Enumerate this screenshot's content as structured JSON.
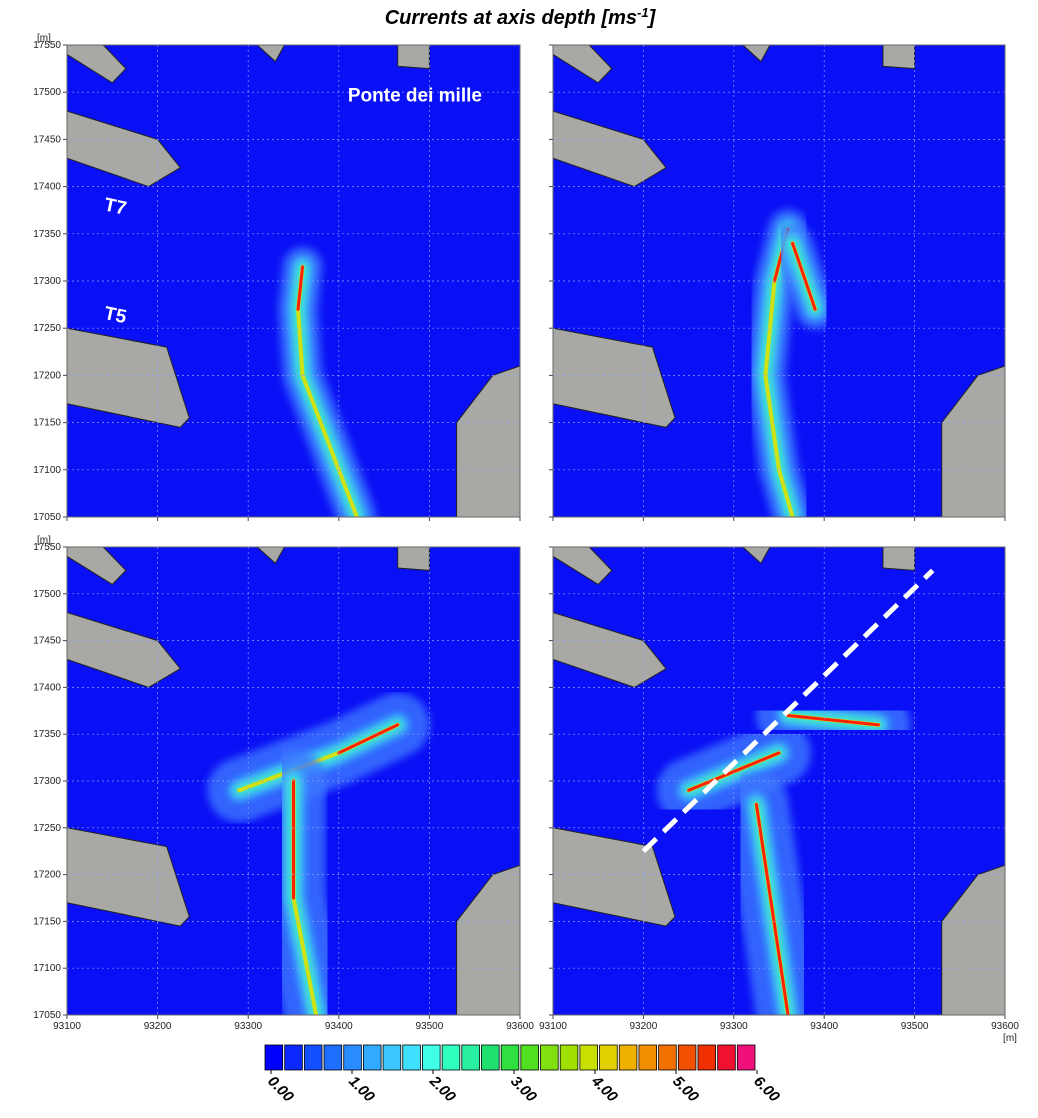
{
  "title_parts": [
    "Currents at axis depth [ms",
    "-1",
    "]"
  ],
  "chart_data": [
    {
      "type": "map",
      "xlim": [
        93100,
        93600
      ],
      "ylim": [
        17050,
        17550
      ],
      "xticks": [
        93100,
        93200,
        93300,
        93400,
        93500,
        93600
      ],
      "yticks": [
        17050,
        17100,
        17150,
        17200,
        17250,
        17300,
        17350,
        17400,
        17450,
        17500,
        17550
      ],
      "y_unit": "[m]",
      "show_xtick_labels": false,
      "show_ytick_labels": true,
      "grid": true,
      "annotations": [
        "Ponte dei mille",
        "T7",
        "T5"
      ]
    },
    {
      "type": "map",
      "xlim": [
        93100,
        93600
      ],
      "ylim": [
        17050,
        17550
      ],
      "xticks": [
        93100,
        93200,
        93300,
        93400,
        93500,
        93600
      ],
      "yticks": [
        17050,
        17100,
        17150,
        17200,
        17250,
        17300,
        17350,
        17400,
        17450,
        17500,
        17550
      ],
      "show_xtick_labels": false,
      "show_ytick_labels": false,
      "grid": true
    },
    {
      "type": "map",
      "xlim": [
        93100,
        93600
      ],
      "ylim": [
        17050,
        17550
      ],
      "xticks": [
        93100,
        93200,
        93300,
        93400,
        93500,
        93600
      ],
      "yticks": [
        17050,
        17100,
        17150,
        17200,
        17250,
        17300,
        17350,
        17400,
        17450,
        17500,
        17550
      ],
      "y_unit": "[m]",
      "show_xtick_labels": true,
      "show_ytick_labels": true,
      "grid": true
    },
    {
      "type": "map",
      "xlim": [
        93100,
        93600
      ],
      "ylim": [
        17050,
        17550
      ],
      "xticks": [
        93100,
        93200,
        93300,
        93400,
        93500,
        93600
      ],
      "yticks": [
        17050,
        17100,
        17150,
        17200,
        17250,
        17300,
        17350,
        17400,
        17450,
        17500,
        17550
      ],
      "x_unit": "[m]",
      "show_xtick_labels": true,
      "show_ytick_labels": false,
      "grid": true
    }
  ],
  "colorbar": {
    "lim": [
      0,
      6
    ],
    "ticks": [
      {
        "value": 0,
        "label": "0.00"
      },
      {
        "value": 1,
        "label": "1.00"
      },
      {
        "value": 2,
        "label": "2.00"
      },
      {
        "value": 3,
        "label": "3.00"
      },
      {
        "value": 4,
        "label": "4.00"
      },
      {
        "value": 5,
        "label": "5.00"
      },
      {
        "value": 6,
        "label": "6.00"
      }
    ],
    "colors": [
      "#0000ff",
      "#0a28ff",
      "#1450ff",
      "#1e6eff",
      "#288cff",
      "#32aaff",
      "#3cc8ff",
      "#40e0ff",
      "#40ffe8",
      "#30ffc0",
      "#28f0a0",
      "#20e070",
      "#30e040",
      "#50e020",
      "#80e010",
      "#a0e000",
      "#c8e000",
      "#e0d000",
      "#f0b000",
      "#f09000",
      "#f07000",
      "#f05000",
      "#f03000",
      "#f01030",
      "#f0107a"
    ]
  }
}
